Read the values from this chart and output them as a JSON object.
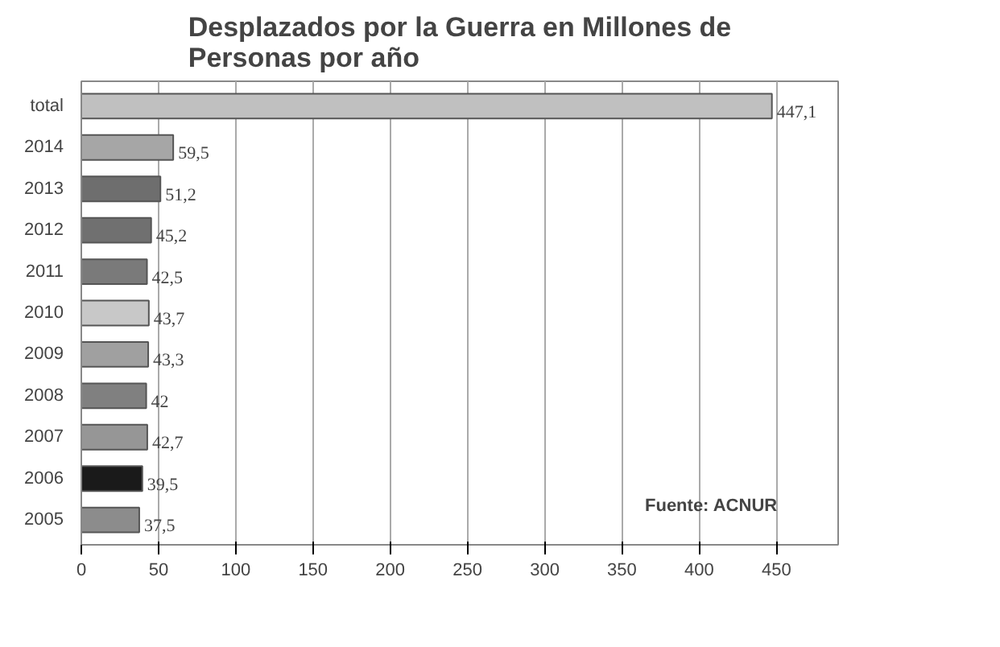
{
  "chart_data": {
    "type": "bar",
    "orientation": "horizontal",
    "title": "Desplazados por la Guerra en Millones de\nPersonas por año",
    "categories": [
      "total",
      "2014",
      "2013",
      "2012",
      "2011",
      "2010",
      "2009",
      "2008",
      "2007",
      "2006",
      "2005"
    ],
    "values": [
      447.1,
      59.5,
      51.2,
      45.2,
      42.5,
      43.7,
      43.3,
      42,
      42.7,
      39.5,
      37.5
    ],
    "value_labels": [
      "447,1",
      "59,5",
      "51,2",
      "45,2",
      "42,5",
      "43,7",
      "43,3",
      "42",
      "42,7",
      "39,5",
      "37,5"
    ],
    "colors": [
      "#c0c0c0",
      "#a6a6a6",
      "#6e6e6e",
      "#707070",
      "#7a7a7a",
      "#c8c8c8",
      "#a0a0a0",
      "#808080",
      "#969696",
      "#1a1a1a",
      "#8c8c8c"
    ],
    "xlim": [
      0,
      490
    ],
    "xticks": [
      0,
      50,
      100,
      150,
      200,
      250,
      300,
      350,
      400,
      450
    ],
    "grid": "x",
    "annotations": [
      "Fuente: ACNUR"
    ]
  }
}
